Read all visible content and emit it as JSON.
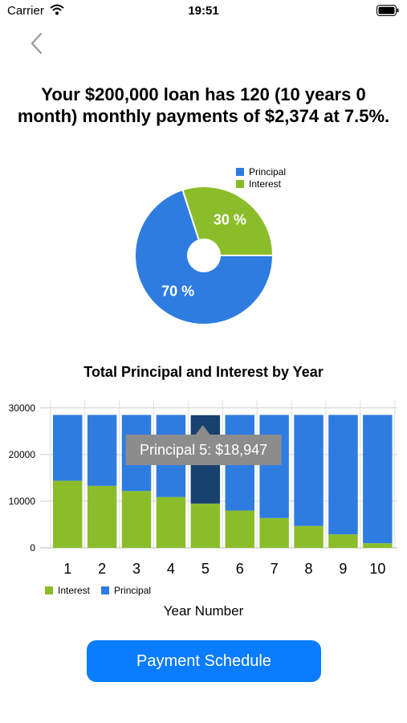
{
  "status": {
    "carrier": "Carrier",
    "time": "19:51"
  },
  "icons": {
    "wifi": "wifi-icon",
    "battery": "battery-icon",
    "back": "chevron-left-icon"
  },
  "headline": "Your $200,000 loan has 120 (10 years 0 month) monthly payments of $2,374 at 7.5%.",
  "colors": {
    "principal": "#2e7ce0",
    "interest": "#8bbd2a",
    "highlight": "#17426f",
    "accent": "#0a7cff"
  },
  "pie": {
    "legend": [
      "Principal",
      "Interest"
    ],
    "chart_data": {
      "type": "pie",
      "slices": [
        {
          "name": "Principal",
          "value": 70,
          "label": "70 %"
        },
        {
          "name": "Interest",
          "value": 30,
          "label": "30 %"
        }
      ]
    }
  },
  "bar": {
    "title": "Total Principal and Interest by Year",
    "xlabel": "Year Number",
    "legend": [
      "Interest",
      "Principal"
    ],
    "tooltip": "Principal 5: $18,947",
    "highlighted_index": 4,
    "chart_data": {
      "type": "bar",
      "stacked": true,
      "categories": [
        "1",
        "2",
        "3",
        "4",
        "5",
        "6",
        "7",
        "8",
        "9",
        "10"
      ],
      "series": [
        {
          "name": "Interest",
          "values": [
            14400,
            13300,
            12200,
            10900,
            9500,
            8000,
            6400,
            4700,
            2900,
            1000
          ]
        },
        {
          "name": "Principal",
          "values": [
            14100,
            15200,
            16300,
            17600,
            18947,
            20500,
            22100,
            23800,
            25600,
            27500
          ]
        }
      ],
      "yticks": [
        0,
        10000,
        20000,
        30000
      ],
      "ylim": [
        0,
        31000
      ],
      "grid": true
    }
  },
  "button": {
    "label": "Payment Schedule"
  }
}
